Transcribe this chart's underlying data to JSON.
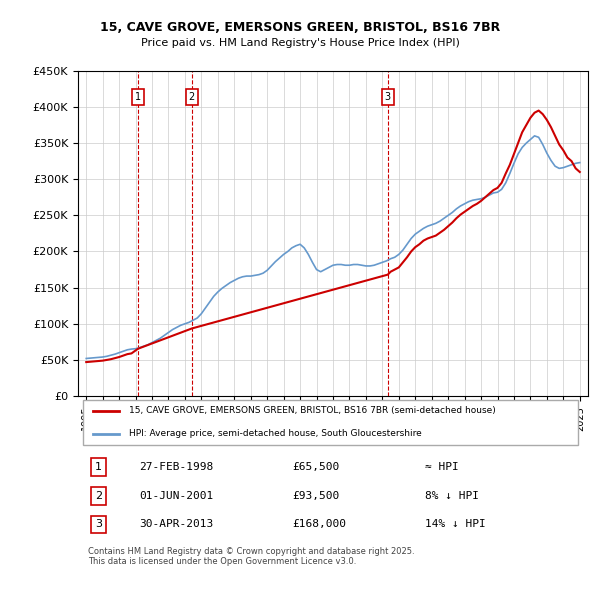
{
  "title1": "15, CAVE GROVE, EMERSONS GREEN, BRISTOL, BS16 7BR",
  "title2": "Price paid vs. HM Land Registry's House Price Index (HPI)",
  "ylabel_ticks": [
    "£0",
    "£50K",
    "£100K",
    "£150K",
    "£200K",
    "£250K",
    "£300K",
    "£350K",
    "£400K",
    "£450K"
  ],
  "ytick_values": [
    0,
    50000,
    100000,
    150000,
    200000,
    250000,
    300000,
    350000,
    400000,
    450000
  ],
  "xlim": [
    1994.5,
    2025.5
  ],
  "ylim": [
    0,
    450000
  ],
  "sale_dates_decimal": [
    1998.15,
    2001.42,
    2013.33
  ],
  "sale_prices": [
    65500,
    93500,
    168000
  ],
  "sale_labels": [
    "1",
    "2",
    "3"
  ],
  "legend_line1": "15, CAVE GROVE, EMERSONS GREEN, BRISTOL, BS16 7BR (semi-detached house)",
  "legend_line2": "HPI: Average price, semi-detached house, South Gloucestershire",
  "table_entries": [
    {
      "num": "1",
      "date": "27-FEB-1998",
      "price": "£65,500",
      "rel": "≈ HPI"
    },
    {
      "num": "2",
      "date": "01-JUN-2001",
      "price": "£93,500",
      "rel": "8% ↓ HPI"
    },
    {
      "num": "3",
      "date": "30-APR-2013",
      "price": "£168,000",
      "rel": "14% ↓ HPI"
    }
  ],
  "footer": "Contains HM Land Registry data © Crown copyright and database right 2025.\nThis data is licensed under the Open Government Licence v3.0.",
  "hpi_color": "#6699cc",
  "sale_line_color": "#cc0000",
  "vline_color": "#cc0000",
  "hpi_data_x": [
    1995.0,
    1995.25,
    1995.5,
    1995.75,
    1996.0,
    1996.25,
    1996.5,
    1996.75,
    1997.0,
    1997.25,
    1997.5,
    1997.75,
    1998.0,
    1998.25,
    1998.5,
    1998.75,
    1999.0,
    1999.25,
    1999.5,
    1999.75,
    2000.0,
    2000.25,
    2000.5,
    2000.75,
    2001.0,
    2001.25,
    2001.5,
    2001.75,
    2002.0,
    2002.25,
    2002.5,
    2002.75,
    2003.0,
    2003.25,
    2003.5,
    2003.75,
    2004.0,
    2004.25,
    2004.5,
    2004.75,
    2005.0,
    2005.25,
    2005.5,
    2005.75,
    2006.0,
    2006.25,
    2006.5,
    2006.75,
    2007.0,
    2007.25,
    2007.5,
    2007.75,
    2008.0,
    2008.25,
    2008.5,
    2008.75,
    2009.0,
    2009.25,
    2009.5,
    2009.75,
    2010.0,
    2010.25,
    2010.5,
    2010.75,
    2011.0,
    2011.25,
    2011.5,
    2011.75,
    2012.0,
    2012.25,
    2012.5,
    2012.75,
    2013.0,
    2013.25,
    2013.5,
    2013.75,
    2014.0,
    2014.25,
    2014.5,
    2014.75,
    2015.0,
    2015.25,
    2015.5,
    2015.75,
    2016.0,
    2016.25,
    2016.5,
    2016.75,
    2017.0,
    2017.25,
    2017.5,
    2017.75,
    2018.0,
    2018.25,
    2018.5,
    2018.75,
    2019.0,
    2019.25,
    2019.5,
    2019.75,
    2020.0,
    2020.25,
    2020.5,
    2020.75,
    2021.0,
    2021.25,
    2021.5,
    2021.75,
    2022.0,
    2022.25,
    2022.5,
    2022.75,
    2023.0,
    2023.25,
    2023.5,
    2023.75,
    2024.0,
    2024.25,
    2024.5,
    2024.75,
    2025.0
  ],
  "hpi_data_y": [
    52000,
    52500,
    53000,
    53500,
    54000,
    55000,
    56500,
    58000,
    60000,
    62000,
    64000,
    65000,
    65500,
    67000,
    69000,
    71000,
    74000,
    77000,
    80000,
    84000,
    88000,
    92000,
    95000,
    98000,
    100000,
    102000,
    105000,
    108000,
    114000,
    122000,
    130000,
    138000,
    144000,
    149000,
    153000,
    157000,
    160000,
    163000,
    165000,
    166000,
    166000,
    167000,
    168000,
    170000,
    174000,
    180000,
    186000,
    191000,
    196000,
    200000,
    205000,
    208000,
    210000,
    205000,
    196000,
    185000,
    175000,
    172000,
    175000,
    178000,
    181000,
    182000,
    182000,
    181000,
    181000,
    182000,
    182000,
    181000,
    180000,
    180000,
    181000,
    183000,
    185000,
    187000,
    190000,
    192000,
    196000,
    202000,
    210000,
    218000,
    224000,
    228000,
    232000,
    235000,
    237000,
    239000,
    242000,
    246000,
    250000,
    254000,
    259000,
    263000,
    266000,
    269000,
    271000,
    272000,
    273000,
    275000,
    278000,
    281000,
    282000,
    286000,
    295000,
    308000,
    322000,
    335000,
    344000,
    350000,
    355000,
    360000,
    358000,
    348000,
    336000,
    326000,
    318000,
    315000,
    316000,
    318000,
    320000,
    322000,
    323000
  ],
  "red_line_x": [
    1995.0,
    1995.25,
    1995.5,
    1995.75,
    1996.0,
    1996.25,
    1996.5,
    1996.75,
    1997.0,
    1997.25,
    1997.5,
    1997.75,
    1998.15,
    2001.42,
    2013.33,
    2013.5,
    2013.75,
    2014.0,
    2014.25,
    2014.5,
    2014.75,
    2015.0,
    2015.25,
    2015.5,
    2015.75,
    2016.0,
    2016.25,
    2016.5,
    2016.75,
    2017.0,
    2017.25,
    2017.5,
    2017.75,
    2018.0,
    2018.25,
    2018.5,
    2018.75,
    2019.0,
    2019.25,
    2019.5,
    2019.75,
    2020.0,
    2020.25,
    2020.5,
    2020.75,
    2021.0,
    2021.25,
    2021.5,
    2021.75,
    2022.0,
    2022.25,
    2022.5,
    2022.75,
    2023.0,
    2023.25,
    2023.5,
    2023.75,
    2024.0,
    2024.25,
    2024.5,
    2024.75,
    2025.0
  ],
  "red_line_y": [
    47000,
    47500,
    48000,
    48500,
    49000,
    50000,
    51000,
    52500,
    54000,
    56000,
    58000,
    59000,
    65500,
    93500,
    168000,
    172000,
    175000,
    178000,
    185000,
    192000,
    200000,
    206000,
    210000,
    215000,
    218000,
    220000,
    222000,
    226000,
    230000,
    235000,
    240000,
    246000,
    251000,
    255000,
    259000,
    263000,
    266000,
    270000,
    275000,
    280000,
    285000,
    288000,
    295000,
    308000,
    320000,
    335000,
    350000,
    365000,
    375000,
    385000,
    392000,
    395000,
    390000,
    382000,
    372000,
    360000,
    348000,
    340000,
    330000,
    325000,
    315000,
    310000
  ]
}
